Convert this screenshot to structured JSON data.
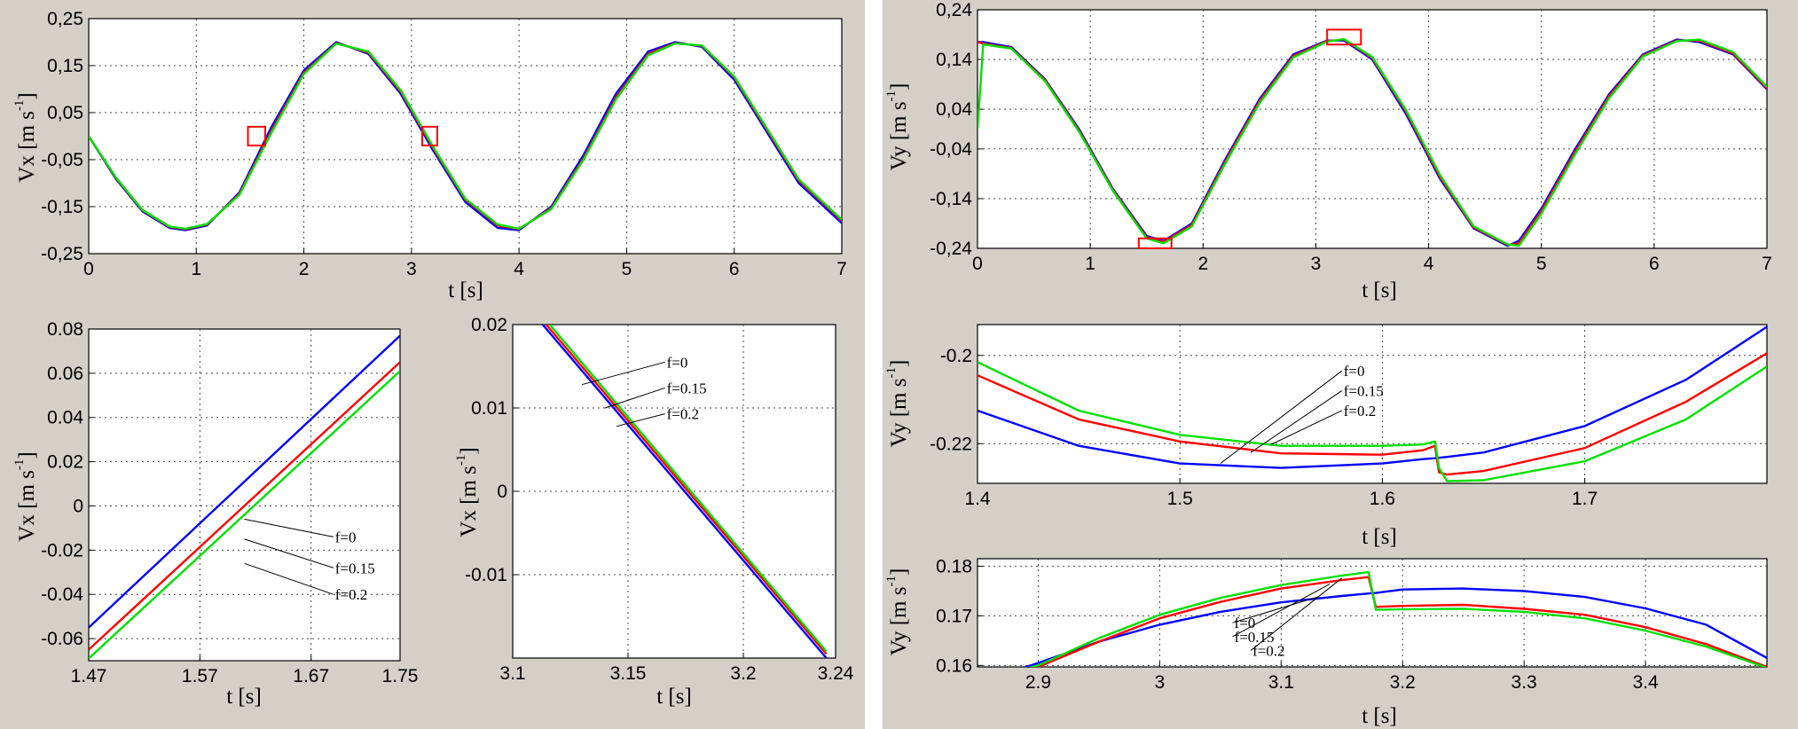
{
  "colors": {
    "background": "#d4d0c8",
    "divider": "#ffffff",
    "f0": "#0000ff",
    "f015": "#ff0000",
    "f02": "#00e000",
    "marker": "#ff0000"
  },
  "chart_data": [
    {
      "id": "vx_main",
      "type": "line",
      "xlabel": "t [s]",
      "ylabel": "Vx [m s-1]",
      "xlim": [
        0,
        7
      ],
      "ylim": [
        -0.25,
        0.25
      ],
      "xticks": [
        0,
        1,
        2,
        3,
        4,
        5,
        6,
        7
      ],
      "xtick_labels": [
        "0",
        "1",
        "2",
        "3",
        "4",
        "5",
        "6",
        "7"
      ],
      "yticks": [
        -0.25,
        -0.15,
        -0.05,
        0.05,
        0.15,
        0.25
      ],
      "ytick_labels": [
        "-0,25",
        "-0,15",
        "-0,05",
        "0,05",
        "0,15",
        "0,25"
      ],
      "grid": true,
      "x": [
        0,
        0.25,
        0.5,
        0.75,
        0.9,
        1.1,
        1.4,
        1.7,
        2.0,
        2.3,
        2.6,
        2.9,
        3.2,
        3.5,
        3.8,
        4.0,
        4.3,
        4.6,
        4.9,
        5.2,
        5.45,
        5.7,
        6.0,
        6.3,
        6.6,
        7.0
      ],
      "series": [
        {
          "key": "f0",
          "values": [
            0,
            -0.09,
            -0.16,
            -0.195,
            -0.2,
            -0.19,
            -0.12,
            0.02,
            0.14,
            0.2,
            0.175,
            0.09,
            -0.03,
            -0.14,
            -0.195,
            -0.2,
            -0.15,
            -0.04,
            0.09,
            0.18,
            0.2,
            0.19,
            0.12,
            0.01,
            -0.1,
            -0.185
          ]
        },
        {
          "key": "f015",
          "values": [
            0,
            -0.088,
            -0.158,
            -0.193,
            -0.198,
            -0.188,
            -0.123,
            0.012,
            0.135,
            0.198,
            0.178,
            0.095,
            -0.025,
            -0.135,
            -0.19,
            -0.198,
            -0.153,
            -0.047,
            0.082,
            0.175,
            0.198,
            0.192,
            0.125,
            0.015,
            -0.095,
            -0.18
          ]
        },
        {
          "key": "f02",
          "values": [
            0,
            -0.087,
            -0.157,
            -0.192,
            -0.197,
            -0.187,
            -0.125,
            0.008,
            0.132,
            0.197,
            0.18,
            0.098,
            -0.022,
            -0.133,
            -0.188,
            -0.197,
            -0.155,
            -0.05,
            0.078,
            0.172,
            0.197,
            0.193,
            0.127,
            0.018,
            -0.092,
            -0.178
          ]
        }
      ],
      "markers": [
        {
          "x_range": [
            1.48,
            1.64
          ],
          "y_range": [
            -0.02,
            0.02
          ]
        },
        {
          "x_range": [
            3.1,
            3.24
          ],
          "y_range": [
            -0.02,
            0.02
          ]
        }
      ]
    },
    {
      "id": "vx_zoom1",
      "type": "line",
      "xlabel": "t [s]",
      "ylabel": "Vx [m s-1]",
      "xlim": [
        1.47,
        1.75
      ],
      "ylim": [
        -0.07,
        0.08
      ],
      "xticks": [
        1.47,
        1.57,
        1.67,
        1.75
      ],
      "xtick_labels": [
        "1.47",
        "1.57",
        "1.67",
        "1.75"
      ],
      "yticks": [
        -0.06,
        -0.04,
        -0.02,
        0,
        0.02,
        0.04,
        0.06,
        0.08
      ],
      "ytick_labels": [
        "-0.06",
        "-0.04",
        "-0.02",
        "0",
        "0.02",
        "0.04",
        "0.06",
        "0.08"
      ],
      "grid": true,
      "x": [
        1.47,
        1.75
      ],
      "series": [
        {
          "key": "f0",
          "values": [
            -0.055,
            0.077
          ]
        },
        {
          "key": "f015",
          "values": [
            -0.065,
            0.065
          ]
        },
        {
          "key": "f02",
          "values": [
            -0.069,
            0.061
          ]
        }
      ],
      "annotations": [
        {
          "text": "f=0",
          "label_at": [
            1.69,
            -0.014
          ],
          "points_to": [
            1.61,
            -0.006
          ]
        },
        {
          "text": "f=0.15",
          "label_at": [
            1.69,
            -0.028
          ],
          "points_to": [
            1.61,
            -0.015
          ]
        },
        {
          "text": "f=0.2",
          "label_at": [
            1.69,
            -0.04
          ],
          "points_to": [
            1.61,
            -0.026
          ]
        }
      ]
    },
    {
      "id": "vx_zoom2",
      "type": "line",
      "xlabel": "t [s]",
      "ylabel": "Vx [m s-1]",
      "xlim": [
        3.1,
        3.24
      ],
      "ylim": [
        -0.02,
        0.02
      ],
      "xticks": [
        3.1,
        3.15,
        3.2,
        3.24
      ],
      "xtick_labels": [
        "3.1",
        "3.15",
        "3.2",
        "3.24"
      ],
      "yticks": [
        -0.01,
        0,
        0.01,
        0.02
      ],
      "ytick_labels": [
        "-0.01",
        "0",
        "0.01",
        "0.02"
      ],
      "grid": true,
      "x": [
        3.113,
        3.236
      ],
      "series": [
        {
          "key": "f0",
          "values": [
            0.02,
            -0.02
          ]
        },
        {
          "key": "f015",
          "values": [
            0.0205,
            -0.0195
          ]
        },
        {
          "key": "f02",
          "values": [
            0.021,
            -0.0192
          ]
        }
      ],
      "annotations": [
        {
          "text": "f=0",
          "label_at": [
            3.166,
            0.0155
          ],
          "points_to": [
            3.13,
            0.0128
          ]
        },
        {
          "text": "f=0.15",
          "label_at": [
            3.166,
            0.0124
          ],
          "points_to": [
            3.14,
            0.01
          ]
        },
        {
          "text": "f=0.2",
          "label_at": [
            3.166,
            0.0093
          ],
          "points_to": [
            3.145,
            0.0078
          ]
        }
      ]
    },
    {
      "id": "vy_main",
      "type": "line",
      "xlabel": "t [s]",
      "ylabel": "Vy [m s-1]",
      "xlim": [
        0,
        7
      ],
      "ylim": [
        -0.24,
        0.24
      ],
      "xticks": [
        0,
        1,
        2,
        3,
        4,
        5,
        6,
        7
      ],
      "xtick_labels": [
        "0",
        "1",
        "2",
        "3",
        "4",
        "5",
        "6",
        "7"
      ],
      "yticks": [
        -0.24,
        -0.14,
        -0.04,
        0.04,
        0.14,
        0.24
      ],
      "ytick_labels": [
        "-0,24",
        "-0,14",
        "-0,04",
        "0,04",
        "0,14",
        "0,24"
      ],
      "grid": true,
      "x": [
        0,
        0.05,
        0.3,
        0.6,
        0.9,
        1.2,
        1.5,
        1.65,
        1.9,
        2.2,
        2.5,
        2.8,
        3.1,
        3.25,
        3.5,
        3.8,
        4.1,
        4.4,
        4.7,
        4.8,
        5.0,
        5.3,
        5.6,
        5.9,
        6.2,
        6.4,
        6.7,
        7.0
      ],
      "series": [
        {
          "key": "f0",
          "values": [
            0.175,
            0.175,
            0.165,
            0.1,
            0.0,
            -0.12,
            -0.215,
            -0.225,
            -0.19,
            -0.06,
            0.06,
            0.15,
            0.178,
            0.178,
            0.14,
            0.03,
            -0.1,
            -0.2,
            -0.235,
            -0.225,
            -0.16,
            -0.04,
            0.07,
            0.15,
            0.18,
            0.175,
            0.15,
            0.08
          ]
        },
        {
          "key": "f015",
          "values": [
            0.175,
            0.172,
            0.163,
            0.098,
            -0.003,
            -0.122,
            -0.218,
            -0.227,
            -0.193,
            -0.064,
            0.056,
            0.147,
            0.177,
            0.18,
            0.143,
            0.035,
            -0.096,
            -0.198,
            -0.233,
            -0.23,
            -0.165,
            -0.045,
            0.066,
            0.148,
            0.178,
            0.178,
            0.152,
            0.082
          ]
        },
        {
          "key": "f02",
          "values": [
            0.0,
            0.17,
            0.162,
            0.096,
            -0.005,
            -0.124,
            -0.22,
            -0.23,
            -0.196,
            -0.068,
            0.052,
            0.144,
            0.176,
            0.181,
            0.145,
            0.038,
            -0.092,
            -0.196,
            -0.232,
            -0.235,
            -0.17,
            -0.05,
            0.062,
            0.146,
            0.177,
            0.18,
            0.155,
            0.085
          ]
        }
      ],
      "markers": [
        {
          "x_range": [
            1.43,
            1.72
          ],
          "y_range": [
            -0.24,
            -0.22
          ]
        },
        {
          "x_range": [
            3.1,
            3.4
          ],
          "y_range": [
            0.17,
            0.2
          ]
        }
      ]
    },
    {
      "id": "vy_zoom1",
      "type": "line",
      "xlabel": "t [s]",
      "ylabel": "Vy [m s-1]",
      "xlim": [
        1.4,
        1.79
      ],
      "ylim": [
        -0.229,
        -0.193
      ],
      "xticks": [
        1.4,
        1.5,
        1.6,
        1.7
      ],
      "xtick_labels": [
        "1.4",
        "1.5",
        "1.6",
        "1.7"
      ],
      "yticks": [
        -0.2,
        -0.22
      ],
      "ytick_labels": [
        "-0.2",
        "-0.22"
      ],
      "grid": true,
      "x": [
        1.4,
        1.45,
        1.5,
        1.55,
        1.6,
        1.62,
        1.626,
        1.628,
        1.632,
        1.65,
        1.7,
        1.75,
        1.79
      ],
      "series": [
        {
          "key": "f0",
          "values": [
            -0.2125,
            -0.2205,
            -0.2245,
            -0.2255,
            -0.2245,
            -0.2235,
            -0.2233,
            -0.2232,
            -0.223,
            -0.222,
            -0.216,
            -0.2055,
            -0.1935
          ]
        },
        {
          "key": "f015",
          "values": [
            -0.2045,
            -0.2145,
            -0.2195,
            -0.2222,
            -0.2225,
            -0.2215,
            -0.2205,
            -0.2265,
            -0.227,
            -0.2262,
            -0.221,
            -0.2105,
            -0.1995
          ]
        },
        {
          "key": "f02",
          "values": [
            -0.2015,
            -0.2125,
            -0.218,
            -0.2205,
            -0.2205,
            -0.2202,
            -0.2195,
            -0.2255,
            -0.2285,
            -0.2283,
            -0.224,
            -0.2145,
            -0.2025
          ]
        }
      ],
      "annotations": [
        {
          "text": "f=0",
          "label_at": [
            1.58,
            -0.2035
          ],
          "points_to": [
            1.52,
            -0.2245
          ]
        },
        {
          "text": "f=0.15",
          "label_at": [
            1.58,
            -0.208
          ],
          "points_to": [
            1.535,
            -0.222
          ]
        },
        {
          "text": "f=0.2",
          "label_at": [
            1.58,
            -0.2125
          ],
          "points_to": [
            1.545,
            -0.2202
          ]
        }
      ]
    },
    {
      "id": "vy_zoom2",
      "type": "line",
      "xlabel": "t [s]",
      "ylabel": "Vy [m s-1]",
      "xlim": [
        2.85,
        3.5
      ],
      "ylim": [
        0.1597,
        0.1815
      ],
      "xticks": [
        2.9,
        3.0,
        3.1,
        3.2,
        3.3,
        3.4
      ],
      "xtick_labels": [
        "2.9",
        "3",
        "3.1",
        "3.2",
        "3.3",
        "3.4"
      ],
      "yticks": [
        0.16,
        0.17,
        0.18
      ],
      "ytick_labels": [
        "0.16",
        "0.17",
        "0.18"
      ],
      "grid": true,
      "x": [
        2.85,
        2.9,
        2.95,
        3.0,
        3.05,
        3.1,
        3.15,
        3.172,
        3.178,
        3.2,
        3.25,
        3.3,
        3.35,
        3.4,
        3.45,
        3.5
      ],
      "series": [
        {
          "key": "f0",
          "values": [
            0.1565,
            0.1605,
            0.1648,
            0.1682,
            0.1708,
            0.1727,
            0.174,
            0.1745,
            0.1746,
            0.1753,
            0.1755,
            0.175,
            0.1738,
            0.1715,
            0.1682,
            0.1615
          ]
        },
        {
          "key": "f015",
          "values": [
            0.157,
            0.1597,
            0.1648,
            0.1695,
            0.1728,
            0.1755,
            0.1772,
            0.1778,
            0.1718,
            0.172,
            0.1722,
            0.1714,
            0.1702,
            0.1677,
            0.1643,
            0.1597
          ]
        },
        {
          "key": "f02",
          "values": [
            0.157,
            0.16,
            0.1655,
            0.1702,
            0.1736,
            0.1762,
            0.1781,
            0.1788,
            0.1712,
            0.1713,
            0.1714,
            0.1708,
            0.1695,
            0.167,
            0.1638,
            0.1595
          ]
        }
      ],
      "annotations": [
        {
          "text": "f=0",
          "label_at": [
            3.06,
            0.1686
          ],
          "points_to": [
            3.13,
            0.1738
          ]
        },
        {
          "text": "f=0.15",
          "label_at": [
            3.06,
            0.1658
          ],
          "points_to": [
            3.14,
            0.1764
          ]
        },
        {
          "text": "f=0.2",
          "label_at": [
            3.075,
            0.163
          ],
          "points_to": [
            3.15,
            0.1776
          ]
        }
      ]
    }
  ]
}
